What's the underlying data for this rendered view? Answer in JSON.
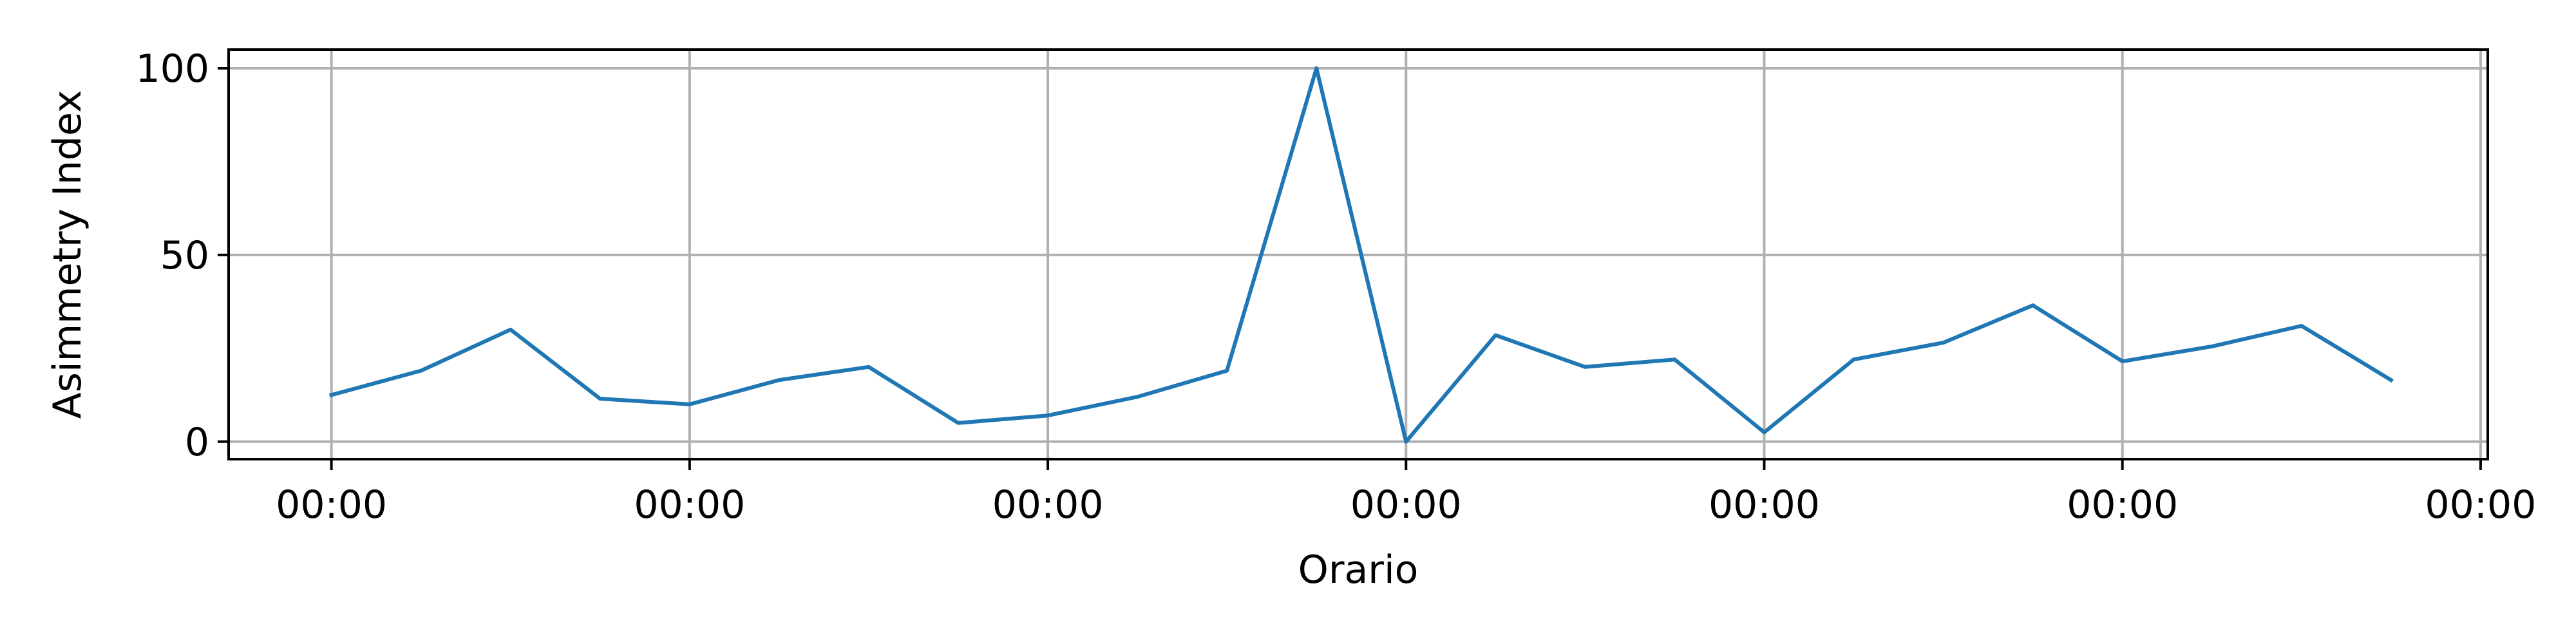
{
  "chart_data": {
    "type": "line",
    "title": "",
    "xlabel": "Orario",
    "ylabel": "Asimmetry Index",
    "x_tick_labels": [
      "00:00",
      "00:00",
      "00:00",
      "00:00",
      "00:00",
      "00:00",
      "00:00"
    ],
    "y_ticks": [
      0,
      50,
      100
    ],
    "ylim": [
      -4.7,
      105
    ],
    "xlim": [
      -0.287,
      6.02
    ],
    "grid": true,
    "legend": "none",
    "series": [
      {
        "color": "#1f77b4",
        "x": [
          0,
          0.25,
          0.5,
          0.75,
          1,
          1.25,
          1.5,
          1.75,
          2,
          2.25,
          2.5,
          2.75,
          3,
          3.25,
          3.5,
          3.75,
          4,
          4.25,
          4.5,
          4.75,
          5,
          5.25,
          5.5,
          5.75
        ],
        "values": [
          12.5,
          19,
          30,
          11.5,
          10,
          16.5,
          20,
          5,
          7,
          12,
          19,
          100,
          0,
          28.5,
          20,
          22,
          2.5,
          22,
          26.5,
          36.5,
          21.5,
          25.5,
          31,
          16.5
        ]
      }
    ]
  }
}
